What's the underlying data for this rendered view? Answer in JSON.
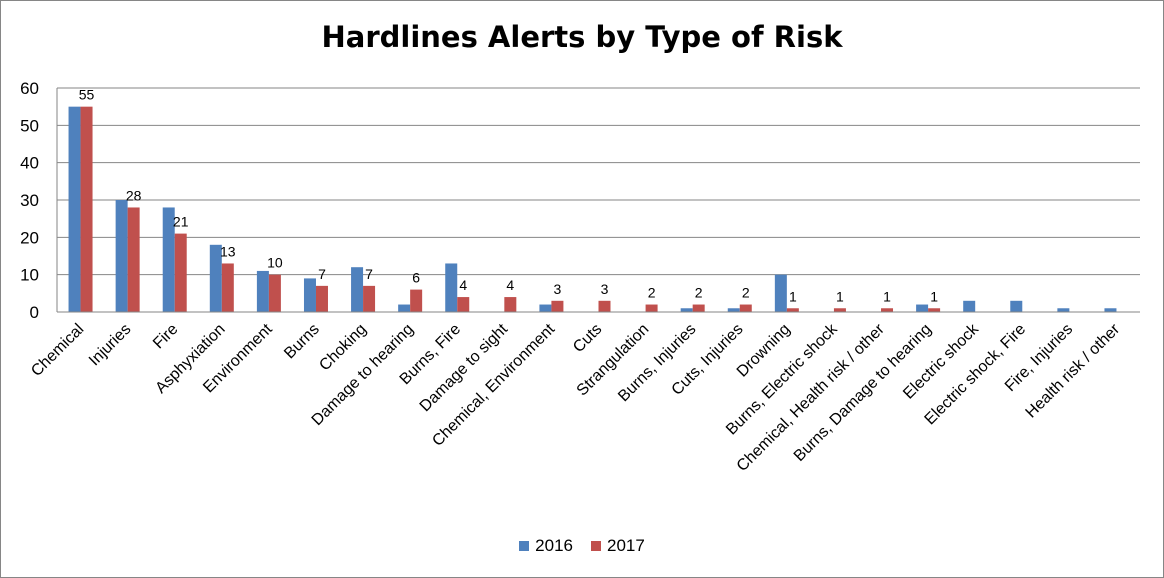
{
  "chart_data": {
    "type": "bar",
    "title": "Hardlines Alerts by Type of Risk",
    "xlabel": "",
    "ylabel": "",
    "ylim": [
      0,
      60
    ],
    "yticks": [
      0,
      10,
      20,
      30,
      40,
      50,
      60
    ],
    "grid": true,
    "legend_position": "bottom",
    "categories": [
      "Chemical",
      "Injuries",
      "Fire",
      "Asphyxiation",
      "Environment",
      "Burns",
      "Choking",
      "Damage to hearing",
      "Burns, Fire",
      "Damage to sight",
      "Chemical, Environment",
      "Cuts",
      "Strangulation",
      "Burns, Injuries",
      "Cuts, Injuries",
      "Drowning",
      "Burns, Electric shock",
      "Chemical, Health risk / other",
      "Burns, Damage to hearing",
      "Electric shock",
      "Electric shock, Fire",
      "Fire, Injuries",
      "Health risk / other"
    ],
    "series": [
      {
        "name": "2016",
        "color": "#4f81bd",
        "values": [
          55,
          30,
          28,
          18,
          11,
          9,
          12,
          2,
          13,
          0,
          2,
          0,
          0,
          1,
          1,
          10,
          0,
          0,
          2,
          3,
          3,
          1,
          1
        ]
      },
      {
        "name": "2017",
        "color": "#c0504d",
        "values": [
          55,
          28,
          21,
          13,
          10,
          7,
          7,
          6,
          4,
          4,
          3,
          3,
          2,
          2,
          2,
          1,
          1,
          1,
          1,
          0,
          0,
          0,
          0
        ],
        "data_labels": [
          "55",
          "28",
          "21",
          "13",
          "10",
          "7",
          "7",
          "6",
          "4",
          "4",
          "3",
          "3",
          "2",
          "2",
          "2",
          "1",
          "1",
          "1",
          "1",
          "",
          "",
          "",
          ""
        ]
      }
    ]
  }
}
